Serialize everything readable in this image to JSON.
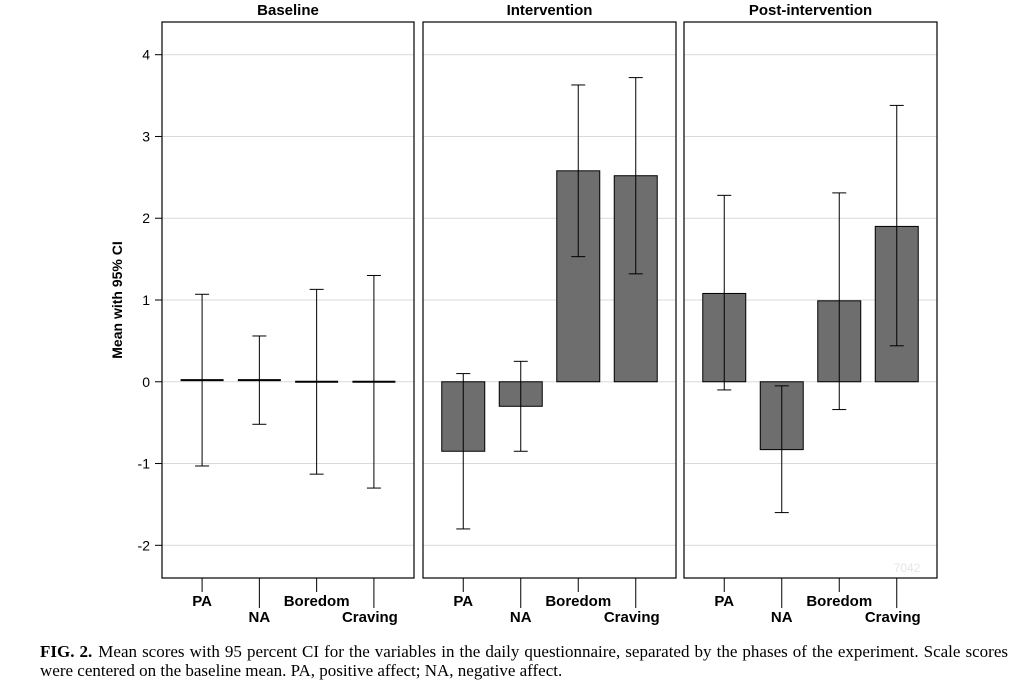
{
  "chart_data": {
    "type": "bar",
    "ylabel": "Mean with 95% CI",
    "ylim": [
      -2.4,
      4.4
    ],
    "yticks": [
      -2,
      -1,
      0,
      1,
      2,
      3,
      4
    ],
    "ytick_labels": [
      "-2",
      "-1",
      "0",
      "1",
      "2",
      "3",
      "4"
    ],
    "categories": [
      "PA",
      "NA",
      "Boredom",
      "Craving"
    ],
    "watermark": "7042",
    "panels": [
      {
        "title": "Baseline",
        "means": [
          0.02,
          0.02,
          0.0,
          0.0
        ],
        "ci_low": [
          -1.03,
          -0.52,
          -1.13,
          -1.3
        ],
        "ci_high": [
          1.07,
          0.56,
          1.13,
          1.3
        ]
      },
      {
        "title": "Intervention",
        "means": [
          -0.85,
          -0.3,
          2.58,
          2.52
        ],
        "ci_low": [
          -1.8,
          -0.85,
          1.53,
          1.32
        ],
        "ci_high": [
          0.1,
          0.25,
          3.63,
          3.72
        ]
      },
      {
        "title": "Post-intervention",
        "means": [
          1.08,
          -0.83,
          0.99,
          1.9
        ],
        "ci_low": [
          -0.1,
          -1.6,
          -0.34,
          0.44
        ],
        "ci_high": [
          2.28,
          -0.05,
          2.31,
          3.38
        ]
      }
    ]
  },
  "caption": {
    "label": "FIG. 2.",
    "text": "Mean scores with 95 percent CI for the variables in the daily questionnaire, separated by the phases of the experiment. Scale scores were centered on the baseline mean. PA, positive affect; NA, negative affect."
  }
}
